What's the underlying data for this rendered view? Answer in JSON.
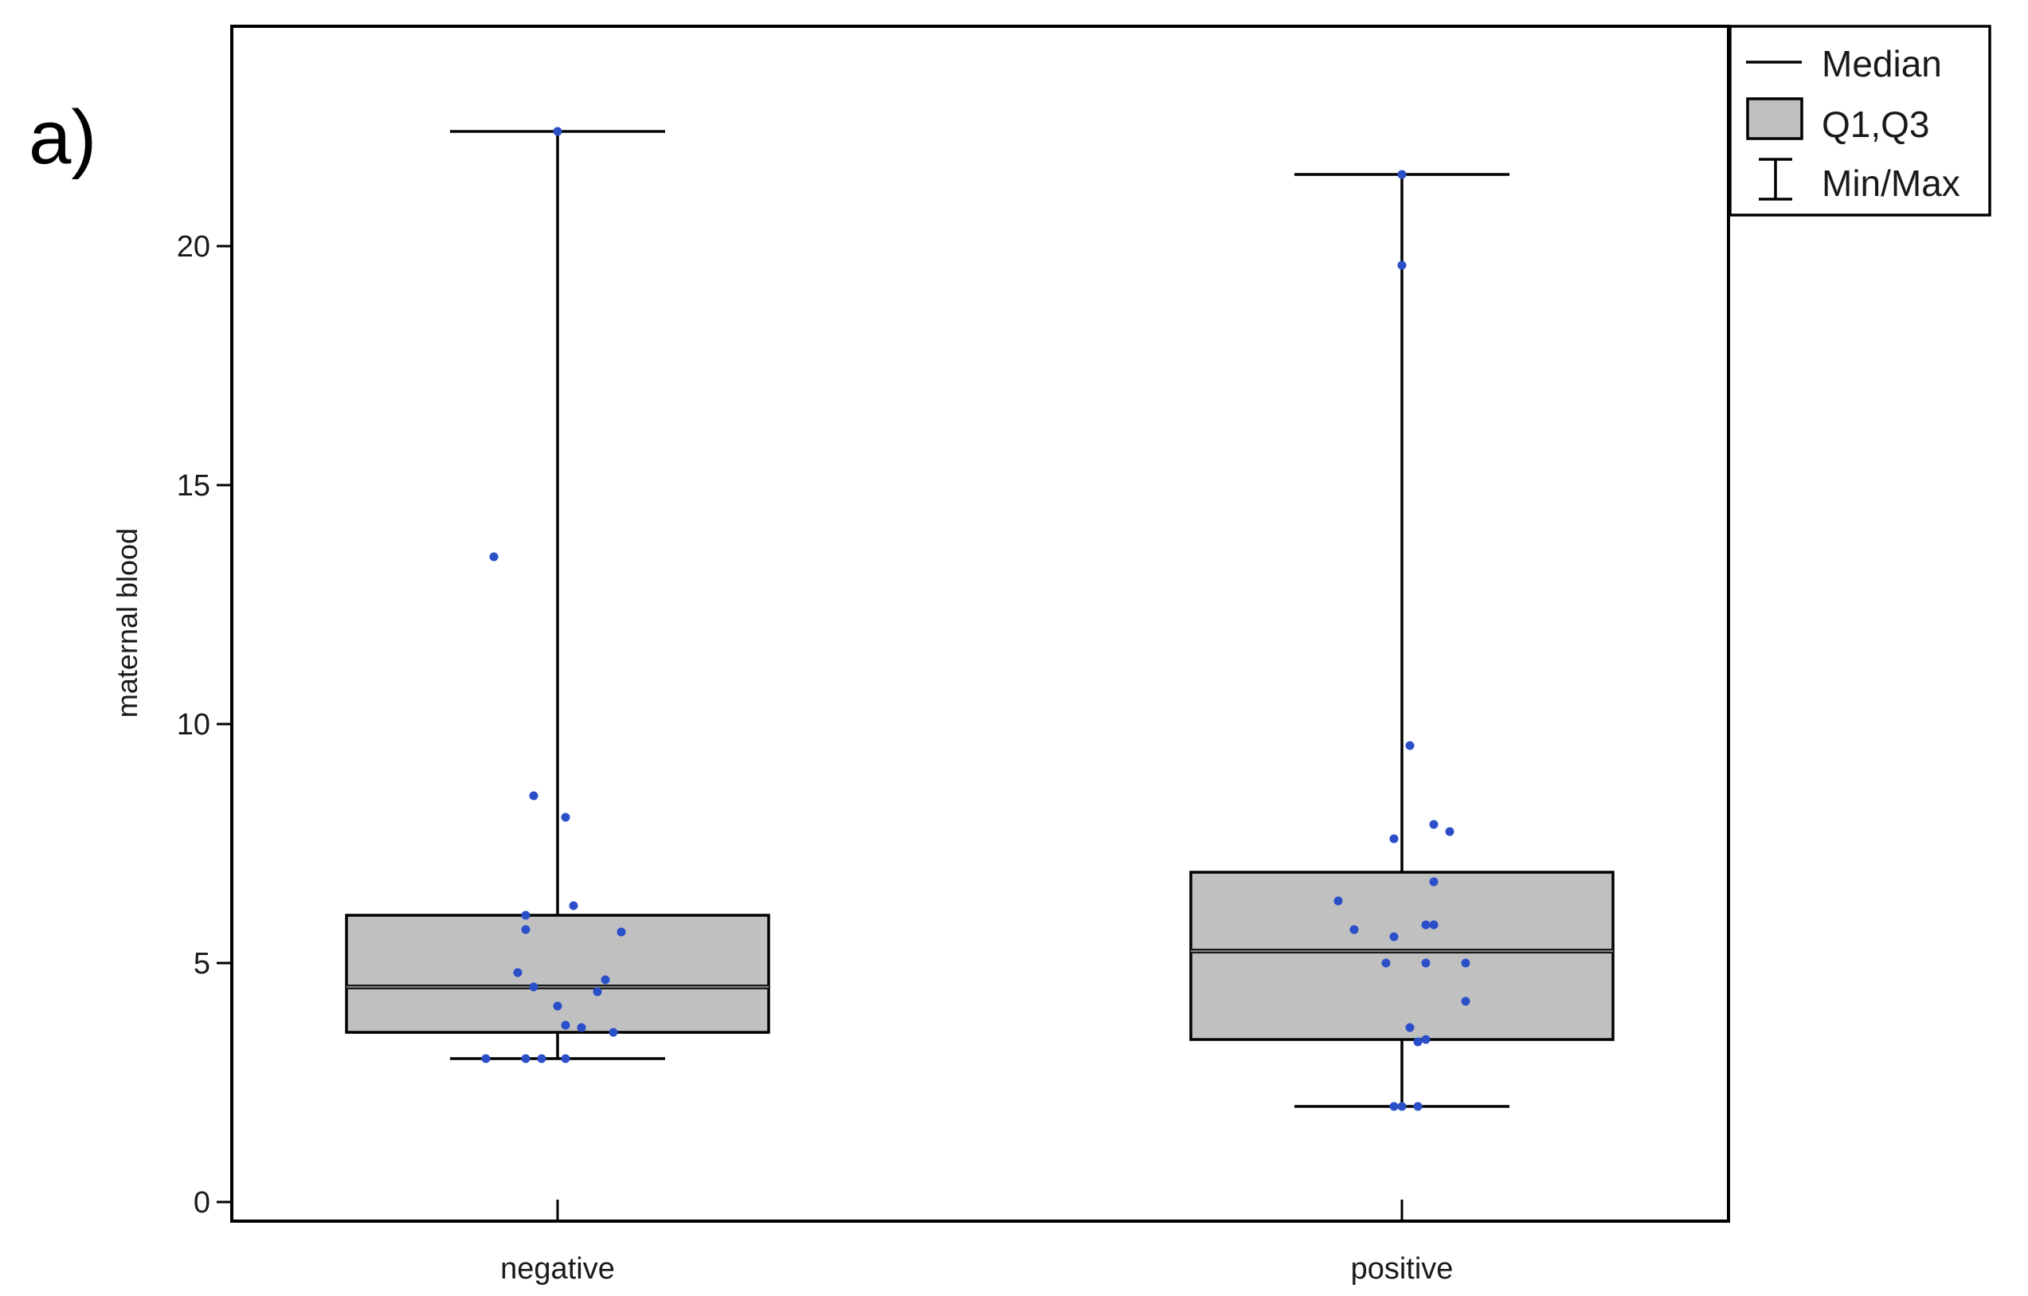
{
  "panel_label": "a)",
  "chart_data": {
    "type": "box",
    "ylabel": "maternal blood",
    "xlabel": "",
    "ylim": [
      -0.4,
      24.6
    ],
    "yticks": [
      0,
      5,
      10,
      15,
      20
    ],
    "categories": [
      "negative",
      "positive"
    ],
    "legend": {
      "placement": "top-right, outside plot",
      "entries": [
        "Median",
        "Q1,Q3",
        "Min/Max"
      ]
    },
    "colors": {
      "box_fill": "#c0c0c0",
      "box_stroke": "#000000",
      "points": "#2a4fc9",
      "axis": "#000000"
    },
    "boxes": [
      {
        "category": "negative",
        "min": 3.0,
        "q1": 3.55,
        "median": 4.5,
        "q3": 6.0,
        "max": 22.4,
        "points": [
          {
            "x": -0.08,
            "y": 13.5
          },
          {
            "x": -0.03,
            "y": 8.5
          },
          {
            "x": 0.01,
            "y": 8.05
          },
          {
            "x": 0.02,
            "y": 6.2
          },
          {
            "x": -0.04,
            "y": 6.0
          },
          {
            "x": -0.04,
            "y": 5.7
          },
          {
            "x": 0.08,
            "y": 5.65
          },
          {
            "x": -0.05,
            "y": 4.8
          },
          {
            "x": 0.06,
            "y": 4.65
          },
          {
            "x": -0.03,
            "y": 4.5
          },
          {
            "x": 0.05,
            "y": 4.4
          },
          {
            "x": 0.0,
            "y": 4.1
          },
          {
            "x": 0.01,
            "y": 3.7
          },
          {
            "x": 0.03,
            "y": 3.65
          },
          {
            "x": 0.07,
            "y": 3.55
          },
          {
            "x": -0.09,
            "y": 3.0
          },
          {
            "x": -0.04,
            "y": 3.0
          },
          {
            "x": -0.02,
            "y": 3.0
          },
          {
            "x": 0.01,
            "y": 3.0
          },
          {
            "x": 0.0,
            "y": 22.4
          }
        ]
      },
      {
        "category": "positive",
        "min": 2.0,
        "q1": 3.4,
        "median": 5.25,
        "q3": 6.9,
        "max": 21.5,
        "points": [
          {
            "x": 0.0,
            "y": 21.5
          },
          {
            "x": 0.0,
            "y": 19.6
          },
          {
            "x": 0.01,
            "y": 9.55
          },
          {
            "x": -0.01,
            "y": 7.6
          },
          {
            "x": 0.04,
            "y": 7.9
          },
          {
            "x": 0.06,
            "y": 7.75
          },
          {
            "x": 0.04,
            "y": 6.7
          },
          {
            "x": -0.08,
            "y": 6.3
          },
          {
            "x": -0.06,
            "y": 5.7
          },
          {
            "x": -0.01,
            "y": 5.55
          },
          {
            "x": 0.03,
            "y": 5.8
          },
          {
            "x": 0.04,
            "y": 5.8
          },
          {
            "x": -0.02,
            "y": 5.0
          },
          {
            "x": 0.03,
            "y": 5.0
          },
          {
            "x": 0.08,
            "y": 5.0
          },
          {
            "x": 0.08,
            "y": 4.2
          },
          {
            "x": 0.01,
            "y": 3.65
          },
          {
            "x": 0.02,
            "y": 3.35
          },
          {
            "x": 0.03,
            "y": 3.4
          },
          {
            "x": -0.01,
            "y": 2.0
          },
          {
            "x": 0.0,
            "y": 2.0
          },
          {
            "x": 0.02,
            "y": 2.0
          }
        ]
      }
    ]
  }
}
